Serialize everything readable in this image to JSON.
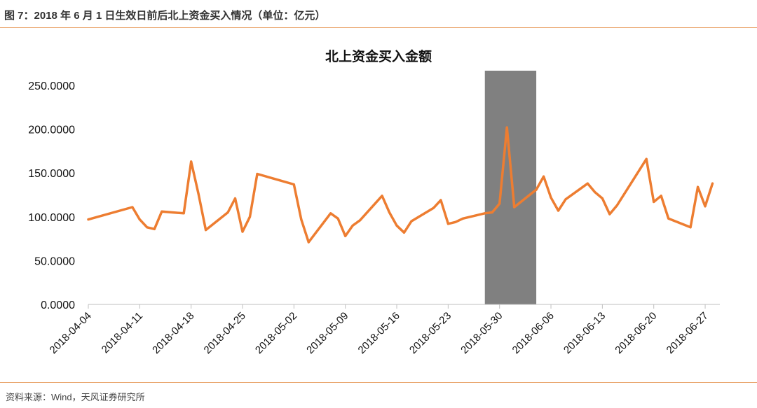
{
  "figure": {
    "title": "图 7：2018 年 6 月 1 日生效日前后北上资金买入情况（单位：亿元）",
    "source": "资料来源：Wind，天风证券研究所"
  },
  "chart_data": {
    "type": "line",
    "title": "北上资金买入金额",
    "xlabel": "",
    "ylabel": "",
    "ylim": [
      0,
      250
    ],
    "y_ticks": [
      "0.0000",
      "50.0000",
      "100.0000",
      "150.0000",
      "200.0000",
      "250.0000"
    ],
    "x_ticks": [
      "2018-04-04",
      "2018-04-11",
      "2018-04-18",
      "2018-04-25",
      "2018-05-02",
      "2018-05-09",
      "2018-05-16",
      "2018-05-23",
      "2018-05-30",
      "2018-06-06",
      "2018-06-13",
      "2018-06-20",
      "2018-06-27"
    ],
    "xlim": [
      "2018-04-04",
      "2018-06-29"
    ],
    "grid": false,
    "legend": "none",
    "highlight": {
      "start": "2018-05-28",
      "end": "2018-06-04"
    },
    "colors": {
      "line": "#ed7d31",
      "highlight": "#808080"
    },
    "series": [
      {
        "x": [
          "2018-04-04",
          "2018-04-10",
          "2018-04-11",
          "2018-04-12",
          "2018-04-13",
          "2018-04-14",
          "2018-04-17",
          "2018-04-18",
          "2018-04-19",
          "2018-04-20",
          "2018-04-23",
          "2018-04-24",
          "2018-04-25",
          "2018-04-26",
          "2018-04-27",
          "2018-05-02",
          "2018-05-03",
          "2018-05-04",
          "2018-05-07",
          "2018-05-08",
          "2018-05-09",
          "2018-05-10",
          "2018-05-11",
          "2018-05-14",
          "2018-05-15",
          "2018-05-16",
          "2018-05-17",
          "2018-05-18",
          "2018-05-21",
          "2018-05-22",
          "2018-05-23",
          "2018-05-24",
          "2018-05-25",
          "2018-05-28",
          "2018-05-29",
          "2018-05-30",
          "2018-05-31",
          "2018-06-01",
          "2018-06-04",
          "2018-06-05",
          "2018-06-06",
          "2018-06-07",
          "2018-06-08",
          "2018-06-11",
          "2018-06-12",
          "2018-06-13",
          "2018-06-14",
          "2018-06-15",
          "2018-06-19",
          "2018-06-20",
          "2018-06-21",
          "2018-06-22",
          "2018-06-25",
          "2018-06-26",
          "2018-06-27",
          "2018-06-28"
        ],
        "values": [
          97,
          111,
          97,
          88,
          86,
          106,
          104,
          163,
          126,
          85,
          105,
          121,
          83,
          100,
          149,
          137,
          97,
          71,
          104,
          98,
          78,
          90,
          96,
          124,
          105,
          90,
          82,
          95,
          110,
          119,
          92,
          94,
          98,
          104,
          105,
          115,
          202,
          111,
          131,
          146,
          122,
          107,
          120,
          138,
          128,
          121,
          103,
          113,
          166,
          117,
          124,
          98,
          88,
          134,
          112,
          138
        ]
      }
    ]
  }
}
